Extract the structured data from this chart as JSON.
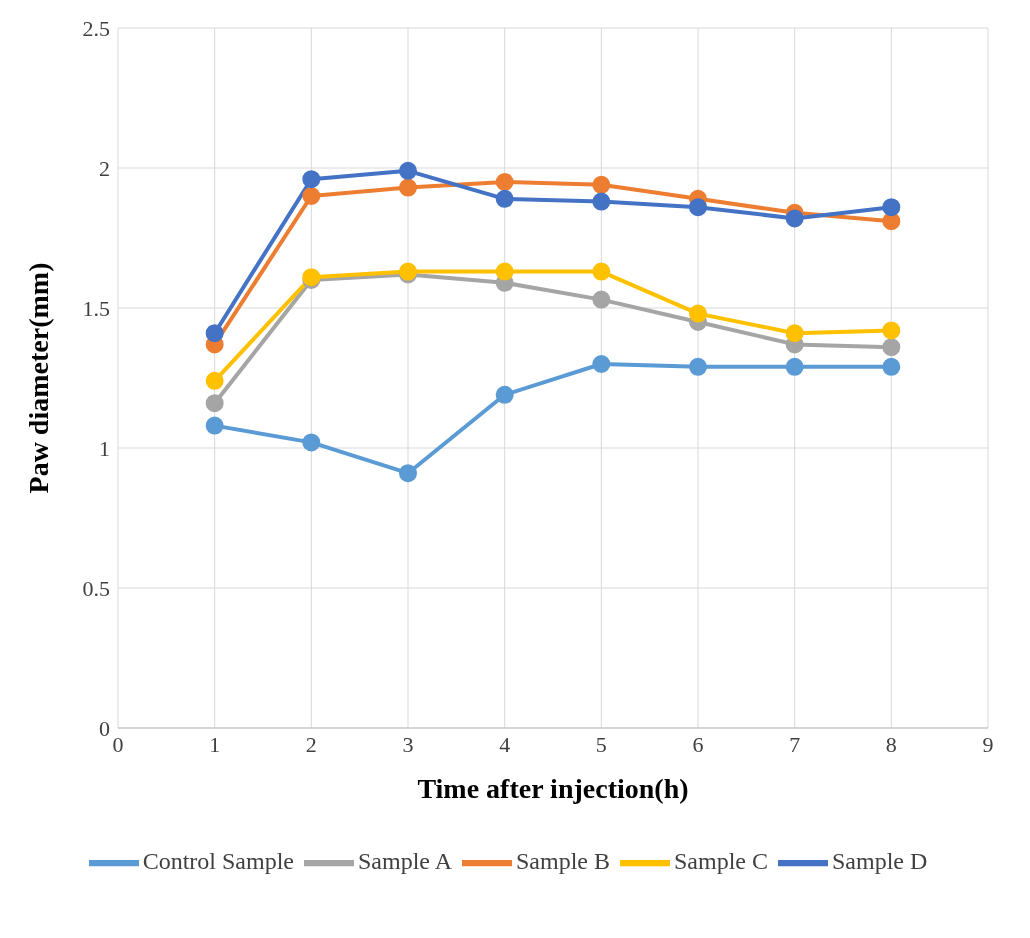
{
  "chart_data": {
    "type": "line",
    "xlabel": "Time after injection(h)",
    "ylabel": "Paw diameter(mm)",
    "x": [
      1,
      2,
      3,
      4,
      5,
      6,
      7,
      8
    ],
    "series": [
      {
        "name": "Control Sample",
        "color": "#5b9bd5",
        "values": [
          1.08,
          1.02,
          0.91,
          1.19,
          1.3,
          1.29,
          1.29,
          1.29
        ]
      },
      {
        "name": "Sample A",
        "color": "#a5a5a5",
        "values": [
          1.16,
          1.6,
          1.62,
          1.59,
          1.53,
          1.45,
          1.37,
          1.36
        ]
      },
      {
        "name": "Sample B",
        "color": "#ed7d31",
        "values": [
          1.37,
          1.9,
          1.93,
          1.95,
          1.94,
          1.89,
          1.84,
          1.81
        ]
      },
      {
        "name": "Sample C",
        "color": "#ffc000",
        "values": [
          1.24,
          1.61,
          1.63,
          1.63,
          1.63,
          1.48,
          1.41,
          1.42
        ]
      },
      {
        "name": "Sample D",
        "color": "#4472c4",
        "values": [
          1.41,
          1.96,
          1.99,
          1.89,
          1.88,
          1.86,
          1.82,
          1.86
        ]
      }
    ],
    "xlim": [
      0,
      9
    ],
    "xticks": [
      0,
      1,
      2,
      3,
      4,
      5,
      6,
      7,
      8,
      9
    ],
    "ylim": [
      0,
      2.5
    ],
    "yticks": [
      0,
      0.5,
      1,
      1.5,
      2,
      2.5
    ],
    "grid": true,
    "legend": "bottom",
    "marker": "circle",
    "line_style": "solid"
  }
}
